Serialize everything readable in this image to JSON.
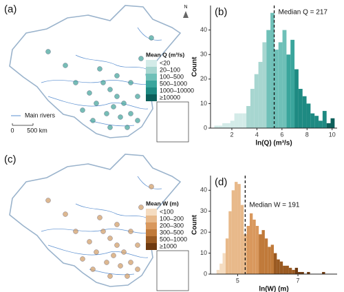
{
  "maps": [
    {
      "label": "(a)",
      "legend_title": "Mean Q (m³/s)",
      "river_label": "Main rivers",
      "scale": [
        "0",
        "500 km"
      ],
      "north": "N",
      "legend": [
        {
          "label": "<20",
          "color": "#d3ebe8"
        },
        {
          "label": "20–100",
          "color": "#a7d6d0"
        },
        {
          "label": "100–500",
          "color": "#6fc0b8"
        },
        {
          "label": "500–1000",
          "color": "#3aa59c"
        },
        {
          "label": "1000–10000",
          "color": "#1e8a82"
        },
        {
          "label": "≥10000",
          "color": "#0c5f5a"
        }
      ]
    },
    {
      "label": "(c)",
      "legend_title": "Mean W (m)",
      "legend": [
        {
          "label": "<100",
          "color": "#f5dcc0"
        },
        {
          "label": "100–200",
          "color": "#e8b98a"
        },
        {
          "label": "200–300",
          "color": "#d9985d"
        },
        {
          "label": "300–500",
          "color": "#c07a3a"
        },
        {
          "label": "500–1000",
          "color": "#9a5a22"
        },
        {
          "label": "≥1000",
          "color": "#6e3a10"
        }
      ]
    }
  ],
  "chart_data": [
    {
      "type": "histogram",
      "label": "(b)",
      "xlabel": "ln(Q) (m³/s)",
      "ylabel": "Count",
      "annotation": "Median Q = 217",
      "median": 5.38,
      "bins": [
        0.6,
        0.92,
        1.24,
        1.56,
        1.88,
        2.2,
        2.52,
        2.84,
        3.16,
        3.48,
        3.8,
        4.12,
        4.44,
        4.76,
        5.08,
        5.4,
        5.72,
        6.04,
        6.36,
        6.68,
        7.0,
        7.32,
        7.64,
        7.96,
        8.28,
        8.6,
        8.92,
        9.24,
        9.56,
        9.88,
        10.2
      ],
      "values": [
        1,
        1,
        2,
        2,
        3,
        6,
        6,
        6,
        9,
        16,
        22,
        27,
        35,
        40,
        47,
        32,
        35,
        40,
        30,
        36,
        24,
        16,
        13,
        10,
        6,
        5,
        3,
        7,
        2,
        4
      ],
      "colors": [
        "#d3ebe8",
        "#d3ebe8",
        "#d3ebe8",
        "#d3ebe8",
        "#d3ebe8",
        "#d3ebe8",
        "#d3ebe8",
        "#d3ebe8",
        "#a7d6d0",
        "#a7d6d0",
        "#a7d6d0",
        "#a7d6d0",
        "#a7d6d0",
        "#6fc0b8",
        "#6fc0b8",
        "#6fc0b8",
        "#6fc0b8",
        "#6fc0b8",
        "#3aa59c",
        "#3aa59c",
        "#1e8a82",
        "#1e8a82",
        "#1e8a82",
        "#1e8a82",
        "#1e8a82",
        "#1e8a82",
        "#1e8a82",
        "#1e8a82",
        "#0c5f5a",
        "#0c5f5a"
      ],
      "xlim": [
        0.3,
        10.4
      ],
      "ylim": [
        0,
        50
      ],
      "xticks": [
        2,
        4,
        6,
        8,
        10
      ],
      "yticks": [
        0,
        10,
        20,
        30,
        40
      ]
    },
    {
      "type": "histogram",
      "label": "(d)",
      "xlabel": "ln(W) (m)",
      "ylabel": "Count",
      "annotation": "Median W = 191",
      "median": 5.25,
      "bins": [
        4.3,
        4.4,
        4.5,
        4.6,
        4.7,
        4.8,
        4.9,
        5.0,
        5.1,
        5.2,
        5.3,
        5.4,
        5.5,
        5.6,
        5.7,
        5.8,
        5.9,
        6.0,
        6.1,
        6.2,
        6.3,
        6.4,
        6.5,
        6.6,
        6.7,
        6.8,
        6.9,
        7.0,
        7.1,
        7.2,
        7.3,
        7.4,
        7.5,
        7.6,
        7.7,
        7.8,
        7.9
      ],
      "values": [
        2,
        5,
        10,
        17,
        30,
        40,
        44,
        43,
        33,
        19,
        23,
        29,
        26,
        23,
        19,
        21,
        17,
        13,
        14,
        10,
        7,
        6,
        4,
        4,
        3,
        2,
        3,
        1,
        1,
        0,
        1,
        0,
        0,
        0,
        0,
        1
      ],
      "colors": [
        "#f5dcc0",
        "#f5dcc0",
        "#f5dcc0",
        "#e8b98a",
        "#e8b98a",
        "#e8b98a",
        "#e8b98a",
        "#e8b98a",
        "#e8b98a",
        "#e8b98a",
        "#d9985d",
        "#d9985d",
        "#d9985d",
        "#d9985d",
        "#c07a3a",
        "#c07a3a",
        "#c07a3a",
        "#c07a3a",
        "#c07a3a",
        "#9a5a22",
        "#9a5a22",
        "#9a5a22",
        "#9a5a22",
        "#9a5a22",
        "#9a5a22",
        "#9a5a22",
        "#6e3a10",
        "#6e3a10",
        "#6e3a10",
        "#6e3a10",
        "#6e3a10",
        "#6e3a10",
        "#6e3a10",
        "#6e3a10",
        "#6e3a10",
        "#6e3a10"
      ],
      "xlim": [
        4.1,
        8.3
      ],
      "ylim": [
        0,
        47
      ],
      "xticks": [
        5,
        7
      ],
      "yticks": [
        0,
        10,
        20,
        30,
        40
      ]
    }
  ]
}
